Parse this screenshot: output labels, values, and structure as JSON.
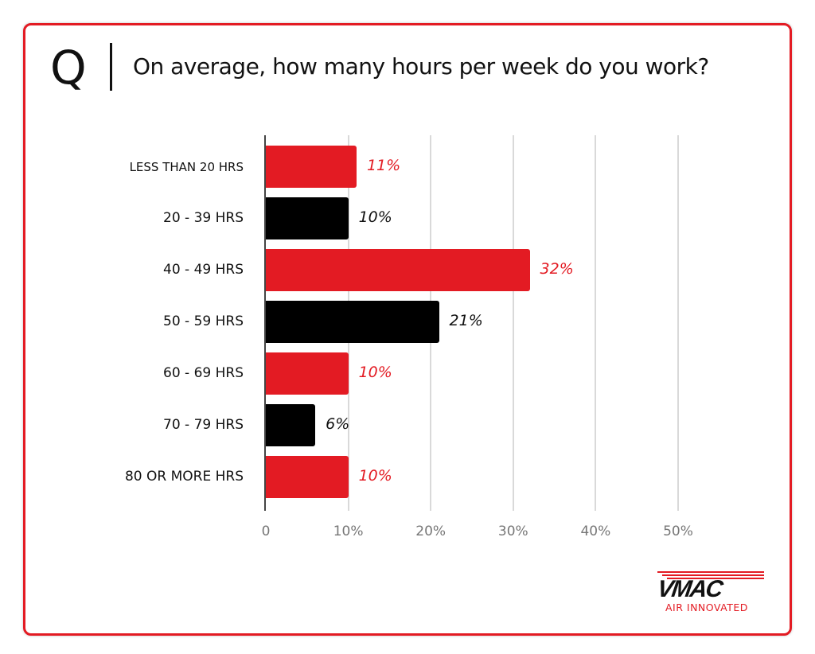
{
  "header": {
    "q_letter": "Q",
    "title": "On average, how many hours per week do you work?"
  },
  "colors": {
    "red": "#e31b23",
    "black": "#000000",
    "frame": "#e31b23",
    "grid": "#d9d9d9",
    "tick": "#777777"
  },
  "chart_data": {
    "type": "bar",
    "orientation": "horizontal",
    "title": "On average, how many hours per week do you work?",
    "xlabel": "",
    "ylabel": "",
    "categories": [
      "LESS THAN 20 HRS",
      "20 - 39 HRS",
      "40 - 49 HRS",
      "50 - 59 HRS",
      "60 - 69 HRS",
      "70 - 79 HRS",
      "80 OR MORE HRS"
    ],
    "values": [
      11,
      10,
      32,
      21,
      10,
      6,
      10
    ],
    "value_labels": [
      "11%",
      "10%",
      "32%",
      "21%",
      "10%",
      "6%",
      "10%"
    ],
    "bar_colors": [
      "#e31b23",
      "#000000",
      "#e31b23",
      "#000000",
      "#e31b23",
      "#000000",
      "#e31b23"
    ],
    "xlim": [
      0,
      50
    ],
    "x_ticks": [
      "0",
      "10%",
      "20%",
      "30%",
      "40%",
      "50%"
    ],
    "grid": true,
    "legend": null
  },
  "logo": {
    "word": "VMAC",
    "tagline": "AIR INNOVATED"
  }
}
